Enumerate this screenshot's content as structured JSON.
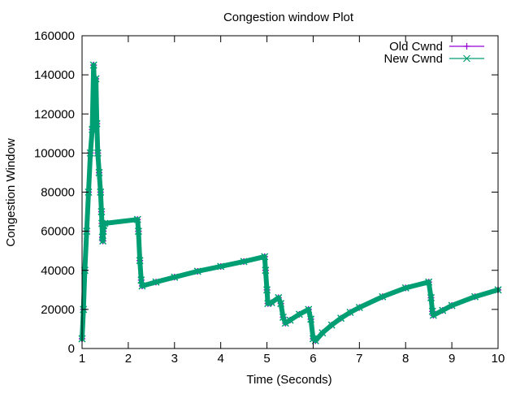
{
  "chart_data": {
    "type": "line",
    "title": "Congestion window Plot",
    "xlabel": "Time (Seconds)",
    "ylabel": "Congestion Window",
    "xlim": [
      1,
      10
    ],
    "ylim": [
      0,
      160000
    ],
    "xticks": [
      1,
      2,
      3,
      4,
      5,
      6,
      7,
      8,
      9,
      10
    ],
    "yticks": [
      0,
      20000,
      40000,
      60000,
      80000,
      100000,
      120000,
      140000,
      160000
    ],
    "grid": false,
    "legend_position": "top-right",
    "series": [
      {
        "name": "Old Cwnd",
        "color": "#9400d3",
        "marker": "plus",
        "x": [
          1.0,
          1.03,
          1.06,
          1.1,
          1.14,
          1.18,
          1.22,
          1.25,
          1.28,
          1.3,
          1.32,
          1.34,
          1.37,
          1.4,
          1.42,
          1.43,
          1.44,
          1.45,
          1.46,
          1.47,
          1.49,
          2.2,
          2.22,
          2.25,
          2.28,
          2.3,
          2.6,
          3.0,
          3.5,
          4.0,
          4.5,
          4.95,
          4.97,
          5.0,
          5.02,
          5.1,
          5.25,
          5.3,
          5.35,
          5.4,
          5.5,
          5.7,
          5.9,
          5.95,
          6.0,
          6.05,
          6.2,
          6.4,
          6.6,
          6.8,
          7.0,
          7.5,
          8.0,
          8.5,
          8.55,
          8.58,
          8.6,
          8.8,
          9.0,
          9.5,
          10.0
        ],
        "y": [
          5000,
          20000,
          40000,
          60000,
          80000,
          100000,
          112000,
          145000,
          125000,
          138000,
          115000,
          100000,
          90000,
          80000,
          70000,
          64000,
          57000,
          55000,
          60000,
          63000,
          64000,
          66000,
          60000,
          45000,
          35000,
          32000,
          34000,
          36500,
          39500,
          42000,
          44500,
          47000,
          40000,
          30000,
          23000,
          23500,
          26000,
          23000,
          16000,
          13000,
          14500,
          17500,
          20000,
          15000,
          5000,
          4000,
          8000,
          12000,
          15500,
          18500,
          21000,
          26500,
          31000,
          34000,
          26000,
          19000,
          17000,
          19500,
          22000,
          26500,
          30000
        ]
      },
      {
        "name": "New Cwnd",
        "color": "#009e73",
        "marker": "cross",
        "x": [
          1.0,
          1.03,
          1.06,
          1.1,
          1.14,
          1.18,
          1.22,
          1.25,
          1.28,
          1.3,
          1.32,
          1.34,
          1.37,
          1.4,
          1.42,
          1.43,
          1.44,
          1.45,
          1.46,
          1.47,
          1.49,
          2.2,
          2.22,
          2.25,
          2.28,
          2.3,
          2.6,
          3.0,
          3.5,
          4.0,
          4.5,
          4.95,
          4.97,
          5.0,
          5.02,
          5.1,
          5.25,
          5.3,
          5.35,
          5.4,
          5.5,
          5.7,
          5.9,
          5.95,
          6.0,
          6.05,
          6.2,
          6.4,
          6.6,
          6.8,
          7.0,
          7.5,
          8.0,
          8.5,
          8.55,
          8.58,
          8.6,
          8.8,
          9.0,
          9.5,
          10.0
        ],
        "y": [
          5000,
          20000,
          40000,
          60000,
          80000,
          100000,
          112000,
          145000,
          125000,
          138000,
          115000,
          100000,
          90000,
          80000,
          70000,
          64000,
          57000,
          55000,
          60000,
          63000,
          64000,
          66000,
          60000,
          45000,
          35000,
          32000,
          34000,
          36500,
          39500,
          42000,
          44500,
          47000,
          40000,
          30000,
          23000,
          23500,
          26000,
          23000,
          16000,
          13000,
          14500,
          17500,
          20000,
          15000,
          5000,
          4000,
          8000,
          12000,
          15500,
          18500,
          21000,
          26500,
          31000,
          34000,
          26000,
          19000,
          17000,
          19500,
          22000,
          26500,
          30000
        ]
      }
    ]
  }
}
